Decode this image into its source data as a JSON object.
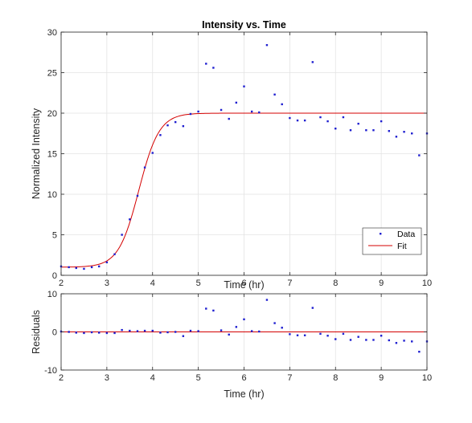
{
  "chart_data": [
    {
      "type": "scatter",
      "title": "Intensity vs. Time",
      "xlabel": "Time (hr)",
      "ylabel": "Normalized Intensity",
      "xlim": [
        2,
        10
      ],
      "ylim": [
        0,
        30
      ],
      "xticks": [
        "2",
        "3",
        "4",
        "5",
        "6",
        "7",
        "8",
        "9",
        "10"
      ],
      "yticks": [
        "0",
        "5",
        "10",
        "15",
        "20",
        "25",
        "30"
      ],
      "grid": true,
      "legend": {
        "placement": "bottom-right",
        "entries": [
          "Data",
          "Fit"
        ]
      },
      "colors": {
        "data": "#1f1fd0",
        "fit": "#d40000",
        "grid": "#e3e3e3",
        "axis": "#262626"
      },
      "series": [
        {
          "name": "Data",
          "style": "points",
          "x": [
            2.0,
            2.17,
            2.33,
            2.5,
            2.67,
            2.83,
            3.0,
            3.17,
            3.33,
            3.5,
            3.67,
            3.83,
            4.0,
            4.17,
            4.33,
            4.5,
            4.67,
            4.83,
            5.0,
            5.17,
            5.33,
            5.5,
            5.67,
            5.83,
            6.0,
            6.17,
            6.33,
            6.5,
            6.67,
            6.83,
            7.0,
            7.17,
            7.33,
            7.5,
            7.67,
            7.83,
            8.0,
            8.17,
            8.33,
            8.5,
            8.67,
            8.83,
            9.0,
            9.17,
            9.33,
            9.5,
            9.67,
            9.83,
            10.0
          ],
          "y": [
            1.1,
            1.0,
            0.9,
            0.8,
            1.0,
            1.1,
            1.6,
            2.6,
            5.0,
            6.9,
            9.8,
            13.3,
            15.1,
            17.3,
            18.5,
            18.9,
            18.4,
            19.9,
            20.2,
            26.1,
            25.6,
            20.4,
            19.3,
            21.3,
            23.3,
            20.2,
            20.1,
            28.4,
            22.3,
            21.1,
            19.4,
            19.1,
            19.1,
            26.3,
            19.5,
            19.0,
            18.1,
            19.5,
            17.9,
            18.7,
            17.9,
            17.9,
            19.0,
            17.8,
            17.1,
            17.7,
            17.5,
            14.8,
            17.5
          ]
        },
        {
          "name": "Fit",
          "style": "line",
          "model": {
            "lower": 1.0,
            "upper": 20.0,
            "midpoint": 3.7,
            "rate": 4.5
          }
        }
      ]
    },
    {
      "type": "scatter",
      "title": "",
      "xlabel": "Time (hr)",
      "ylabel": "Residuals",
      "xlim": [
        2,
        10
      ],
      "ylim": [
        -10,
        10
      ],
      "xticks": [
        "2",
        "3",
        "4",
        "5",
        "6",
        "7",
        "8",
        "9",
        "10"
      ],
      "yticks": [
        "-10",
        "0",
        "10"
      ],
      "grid": true,
      "zero_line": true,
      "colors": {
        "data": "#1f1fd0",
        "zero": "#d40000"
      },
      "series": [
        {
          "style": "points",
          "x": [
            2.0,
            2.17,
            2.33,
            2.5,
            2.67,
            2.83,
            3.0,
            3.17,
            3.33,
            3.5,
            3.67,
            3.83,
            4.0,
            4.17,
            4.33,
            4.5,
            4.67,
            4.83,
            5.0,
            5.17,
            5.33,
            5.5,
            5.67,
            5.83,
            6.0,
            6.17,
            6.33,
            6.5,
            6.67,
            6.83,
            7.0,
            7.17,
            7.33,
            7.5,
            7.67,
            7.83,
            8.0,
            8.17,
            8.33,
            8.5,
            8.67,
            8.83,
            9.0,
            9.17,
            9.33,
            9.5,
            9.67,
            9.83,
            10.0
          ],
          "y": [
            0.1,
            0.0,
            -0.2,
            -0.3,
            -0.1,
            -0.2,
            -0.3,
            -0.3,
            0.5,
            0.3,
            0.2,
            0.3,
            0.3,
            -0.2,
            -0.1,
            0.0,
            -1.1,
            0.3,
            0.2,
            6.1,
            5.6,
            0.4,
            -0.7,
            1.3,
            3.3,
            0.2,
            0.1,
            8.4,
            2.3,
            1.1,
            -0.6,
            -0.9,
            -0.9,
            6.3,
            -0.5,
            -1.0,
            -1.9,
            -0.5,
            -2.1,
            -1.3,
            -2.1,
            -2.1,
            -1.0,
            -2.2,
            -2.9,
            -2.3,
            -2.5,
            -5.2,
            -2.5
          ]
        }
      ]
    }
  ]
}
